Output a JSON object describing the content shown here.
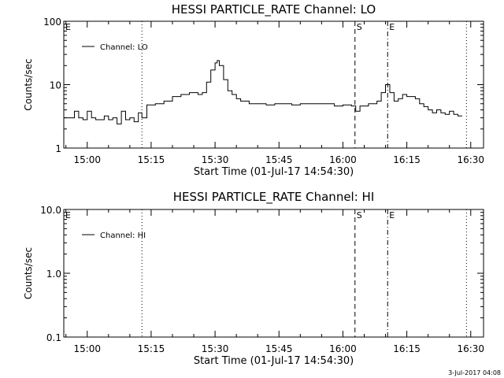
{
  "chart_data": [
    {
      "type": "line",
      "title": "HESSI PARTICLE_RATE Channel: LO",
      "xlabel": "Start Time (01-Jul-17 14:54:30)",
      "ylabel": "Counts/sec",
      "y_scale": "log",
      "ylim": [
        1,
        100
      ],
      "xlim": [
        "14:54:30",
        "16:33:00"
      ],
      "x_tick_labels": [
        "15:00",
        "15:15",
        "15:30",
        "15:45",
        "16:00",
        "16:15",
        "16:30"
      ],
      "y_tick_labels": [
        "1",
        "10",
        "100"
      ],
      "legend": {
        "placement": "top-left",
        "entries": [
          "Channel: LO"
        ]
      },
      "markers": [
        {
          "label": "E",
          "time": "14:54:30",
          "style": "dotted"
        },
        {
          "label": "",
          "time": "15:12:50",
          "style": "dotted"
        },
        {
          "label": "S",
          "time": "16:02:50",
          "style": "dashed"
        },
        {
          "label": "E",
          "time": "16:10:30",
          "style": "dash-dot"
        },
        {
          "label": "",
          "time": "16:29:00",
          "style": "dotted"
        }
      ],
      "series": [
        {
          "name": "Channel: LO",
          "x": [
            "14:54:30",
            "14:56:00",
            "14:57:00",
            "14:58:00",
            "14:59:00",
            "15:00:00",
            "15:01:00",
            "15:02:00",
            "15:03:00",
            "15:04:00",
            "15:05:00",
            "15:06:00",
            "15:07:00",
            "15:08:00",
            "15:09:00",
            "15:10:00",
            "15:11:00",
            "15:12:00",
            "15:12:50",
            "15:14:00",
            "15:16:00",
            "15:18:00",
            "15:20:00",
            "15:22:00",
            "15:24:00",
            "15:25:00",
            "15:26:00",
            "15:27:00",
            "15:28:00",
            "15:29:00",
            "15:30:00",
            "15:30:30",
            "15:31:00",
            "15:32:00",
            "15:33:00",
            "15:34:00",
            "15:35:00",
            "15:36:00",
            "15:38:00",
            "15:40:00",
            "15:42:00",
            "15:44:00",
            "15:46:00",
            "15:48:00",
            "15:50:00",
            "15:52:00",
            "15:54:00",
            "15:56:00",
            "15:58:00",
            "16:00:00",
            "16:02:00",
            "16:03:00",
            "16:04:00",
            "16:06:00",
            "16:08:00",
            "16:09:00",
            "16:10:00",
            "16:11:00",
            "16:12:00",
            "16:13:00",
            "16:14:00",
            "16:15:00",
            "16:16:00",
            "16:17:00",
            "16:18:00",
            "16:19:00",
            "16:20:00",
            "16:21:00",
            "16:22:00",
            "16:23:00",
            "16:24:00",
            "16:25:00",
            "16:26:00",
            "16:27:00",
            "16:28:00"
          ],
          "values": [
            3,
            3,
            3.8,
            3,
            2.8,
            3.8,
            3,
            2.8,
            2.8,
            3.2,
            2.8,
            3,
            2.4,
            3.8,
            2.8,
            3,
            2.6,
            3.6,
            3,
            4.8,
            5,
            5.5,
            6.5,
            7,
            7.5,
            7.5,
            7,
            7.5,
            11,
            17,
            22,
            24,
            20,
            12,
            8,
            7,
            6,
            5.5,
            5,
            5,
            4.8,
            5,
            5,
            4.8,
            5,
            5,
            5,
            5,
            4.6,
            4.8,
            4.6,
            3.8,
            4.6,
            5,
            5.5,
            7.5,
            10,
            7.5,
            5.5,
            6,
            7,
            6.5,
            6.5,
            6,
            5,
            4.5,
            4,
            3.6,
            4,
            3.6,
            3.4,
            3.8,
            3.4,
            3.2,
            3.2
          ]
        }
      ]
    },
    {
      "type": "line",
      "title": "HESSI PARTICLE_RATE Channel: HI",
      "xlabel": "Start Time (01-Jul-17 14:54:30)",
      "ylabel": "Counts/sec",
      "y_scale": "log",
      "ylim": [
        0.1,
        10
      ],
      "xlim": [
        "14:54:30",
        "16:33:00"
      ],
      "x_tick_labels": [
        "15:00",
        "15:15",
        "15:30",
        "15:45",
        "16:00",
        "16:15",
        "16:30"
      ],
      "y_tick_labels": [
        "0.1",
        "1.0",
        "10.0"
      ],
      "legend": {
        "placement": "top-left",
        "entries": [
          "Channel: HI"
        ]
      },
      "markers": [
        {
          "label": "E",
          "time": "14:54:30",
          "style": "dotted"
        },
        {
          "label": "",
          "time": "15:12:50",
          "style": "dotted"
        },
        {
          "label": "S",
          "time": "16:02:50",
          "style": "dashed"
        },
        {
          "label": "E",
          "time": "16:10:30",
          "style": "dash-dot"
        },
        {
          "label": "",
          "time": "16:29:00",
          "style": "dotted"
        }
      ],
      "series": [
        {
          "name": "Channel: HI",
          "x": [],
          "values": []
        }
      ]
    }
  ],
  "footer": {
    "timestamp": "3-Jul-2017 04:08"
  }
}
